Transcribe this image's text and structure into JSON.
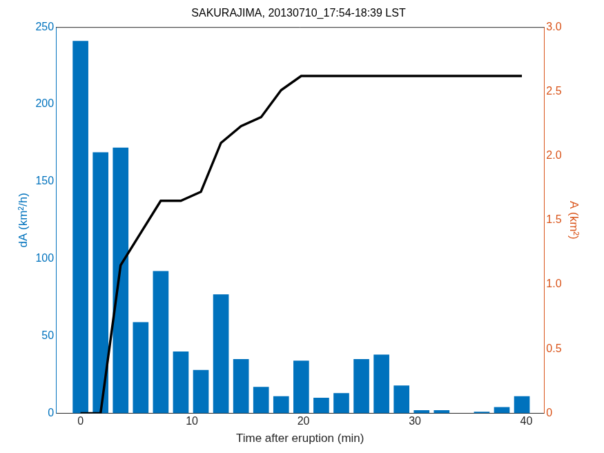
{
  "chart_data": {
    "type": "bar",
    "title": "SAKURAJIMA, 20130710_17:54-18:39 LST",
    "x_label": "Time after eruption (min)",
    "y_label": "dA (km²/h)",
    "y2_label": "A (km²)",
    "x": [
      0,
      1.8,
      3.6,
      5.4,
      7.2,
      9,
      10.8,
      12.6,
      14.4,
      16.2,
      18,
      19.8,
      21.6,
      23.4,
      25.2,
      27,
      28.8,
      30.6,
      32.4,
      34.2,
      36,
      37.8,
      39.6
    ],
    "series": [
      {
        "type": "bar",
        "color": "#0072bd",
        "values": [
          241,
          169,
          172,
          59,
          92,
          40,
          28,
          77,
          35,
          17,
          11,
          34,
          10,
          13,
          35,
          38,
          18,
          2,
          2,
          0,
          1,
          4,
          11
        ]
      },
      {
        "type": "line",
        "color": "#000000",
        "axis": "y2",
        "values": [
          0,
          0,
          1.15,
          1.4,
          1.65,
          1.65,
          1.72,
          2.1,
          2.23,
          2.3,
          2.51,
          2.62,
          2.62,
          2.62,
          2.62,
          2.62,
          2.62,
          2.62,
          2.62,
          2.62,
          2.62,
          2.62,
          2.62
        ]
      }
    ],
    "xlim": [
      -2.2,
      41.6
    ],
    "xticks": [
      0,
      10,
      20,
      30,
      40
    ],
    "ylim": [
      0,
      250
    ],
    "yticks": [
      0,
      50,
      100,
      150,
      200,
      250
    ],
    "y2lim": [
      0,
      3
    ],
    "y2ticks": [
      0,
      0.5,
      1,
      1.5,
      2,
      2.5,
      3
    ],
    "grid": false
  }
}
